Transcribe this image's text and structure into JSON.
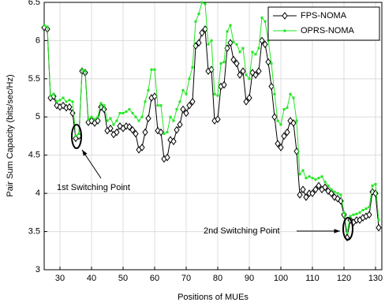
{
  "chart_data": {
    "type": "line",
    "xlabel": "Positions of MUEs",
    "ylabel": "Pair Sum Capacity (bits/sec/Hz)",
    "x": [
      25,
      26,
      27,
      28,
      29,
      30,
      31,
      32,
      33,
      34,
      35,
      36,
      37,
      38,
      39,
      40,
      41,
      42,
      43,
      44,
      45,
      46,
      47,
      48,
      49,
      50,
      51,
      52,
      53,
      54,
      55,
      56,
      57,
      58,
      59,
      60,
      61,
      62,
      63,
      64,
      65,
      66,
      67,
      68,
      69,
      70,
      71,
      72,
      73,
      74,
      75,
      76,
      77,
      78,
      79,
      80,
      81,
      82,
      83,
      84,
      85,
      86,
      87,
      88,
      89,
      90,
      91,
      92,
      93,
      94,
      95,
      96,
      97,
      98,
      99,
      100,
      101,
      102,
      103,
      104,
      105,
      106,
      107,
      108,
      109,
      110,
      111,
      112,
      113,
      114,
      115,
      116,
      117,
      118,
      119,
      120,
      121,
      122,
      123,
      124,
      125,
      126,
      127,
      128,
      129,
      130,
      131
    ],
    "series": [
      {
        "name": "FPS-NOMA",
        "color": "#000000",
        "marker": "diamond",
        "values": [
          6.17,
          6.15,
          5.25,
          5.27,
          5.15,
          5.13,
          5.15,
          5.12,
          5.13,
          5.05,
          4.72,
          4.75,
          5.6,
          5.58,
          4.93,
          4.95,
          4.92,
          4.95,
          5.13,
          5.1,
          4.82,
          4.85,
          4.77,
          4.8,
          4.88,
          4.85,
          4.88,
          4.87,
          4.83,
          4.78,
          4.57,
          4.6,
          4.8,
          4.98,
          5.25,
          5.27,
          4.82,
          4.8,
          4.45,
          4.47,
          4.7,
          4.68,
          4.83,
          4.9,
          5.1,
          5.05,
          5.15,
          5.2,
          5.93,
          5.97,
          6.1,
          6.15,
          5.6,
          5.62,
          4.95,
          4.97,
          5.4,
          5.42,
          5.9,
          5.97,
          5.75,
          5.7,
          5.55,
          5.6,
          5.2,
          5.25,
          5.58,
          5.55,
          5.6,
          6.0,
          5.95,
          5.72,
          5.4,
          5.0,
          4.65,
          4.6,
          4.75,
          4.8,
          4.95,
          4.92,
          4.55,
          3.98,
          4.05,
          3.95,
          4.0,
          4.0,
          4.05,
          4.1,
          4.05,
          4.08,
          4.03,
          4.0,
          3.95,
          3.93,
          3.9,
          3.72,
          3.42,
          3.65,
          3.62,
          3.65,
          3.65,
          3.68,
          3.7,
          3.72,
          4.02,
          4.0,
          3.55
        ]
      },
      {
        "name": "OPRS-NOMA",
        "color": "#22e622",
        "marker": "square",
        "values": [
          6.2,
          6.18,
          5.28,
          5.3,
          5.2,
          5.22,
          5.25,
          5.2,
          5.22,
          5.2,
          4.75,
          4.78,
          5.62,
          5.6,
          4.97,
          5.0,
          4.97,
          5.0,
          5.18,
          5.15,
          4.95,
          4.98,
          4.9,
          4.95,
          5.05,
          5.05,
          5.07,
          5.1,
          5.05,
          5.0,
          4.95,
          5.0,
          5.2,
          5.35,
          5.62,
          5.62,
          5.15,
          5.15,
          4.78,
          4.8,
          5.0,
          4.95,
          5.1,
          5.2,
          5.35,
          5.3,
          5.5,
          5.65,
          6.25,
          6.35,
          6.5,
          6.48,
          5.95,
          6.0,
          5.3,
          5.28,
          5.7,
          5.72,
          6.12,
          6.2,
          5.98,
          5.95,
          5.85,
          5.9,
          5.55,
          5.5,
          5.85,
          5.82,
          5.9,
          6.3,
          6.25,
          6.0,
          5.7,
          5.3,
          4.95,
          4.9,
          5.1,
          5.12,
          5.3,
          5.25,
          4.95,
          4.25,
          4.3,
          4.2,
          4.22,
          4.2,
          4.18,
          4.2,
          4.22,
          4.15,
          4.1,
          4.05,
          4.02,
          4.0,
          3.98,
          3.75,
          3.48,
          3.7,
          3.72,
          3.73,
          3.75,
          3.78,
          3.8,
          3.82,
          4.1,
          4.12,
          3.65
        ]
      }
    ],
    "xlim": [
      25,
      132
    ],
    "xticks": [
      30,
      40,
      50,
      60,
      70,
      80,
      90,
      100,
      110,
      120,
      130
    ],
    "ylim": [
      3,
      6.5
    ],
    "yticks": [
      3,
      3.5,
      4,
      4.5,
      5,
      5.5,
      6,
      6.5
    ],
    "grid": true,
    "legend": "upper right",
    "annotations": [
      {
        "text": "1st Switching Point"
      },
      {
        "text": "2nd Switching Point"
      }
    ]
  }
}
